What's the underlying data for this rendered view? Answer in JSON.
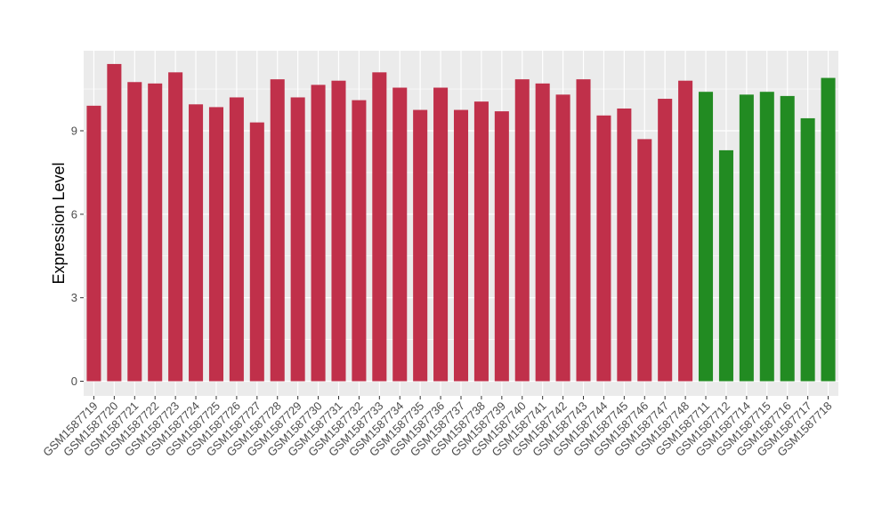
{
  "chart_data": {
    "type": "bar",
    "title": "",
    "xlabel": "",
    "ylabel": "Expression Level",
    "ylim": [
      0,
      11.9
    ],
    "yticks": [
      0,
      3,
      6,
      9
    ],
    "grid": true,
    "categories": [
      "GSM1587719",
      "GSM1587720",
      "GSM1587721",
      "GSM1587722",
      "GSM1587723",
      "GSM1587724",
      "GSM1587725",
      "GSM1587726",
      "GSM1587727",
      "GSM1587728",
      "GSM1587729",
      "GSM1587730",
      "GSM1587731",
      "GSM1587732",
      "GSM1587733",
      "GSM1587734",
      "GSM1587735",
      "GSM1587736",
      "GSM1587737",
      "GSM1587738",
      "GSM1587739",
      "GSM1587740",
      "GSM1587741",
      "GSM1587742",
      "GSM1587743",
      "GSM1587744",
      "GSM1587745",
      "GSM1587746",
      "GSM1587747",
      "GSM1587748",
      "GSM1587711",
      "GSM1587712",
      "GSM1587714",
      "GSM1587715",
      "GSM1587716",
      "GSM1587717",
      "GSM1587718"
    ],
    "values": [
      9.9,
      11.4,
      10.75,
      10.7,
      11.1,
      9.95,
      9.85,
      10.2,
      9.3,
      10.85,
      10.2,
      10.65,
      10.8,
      10.1,
      11.1,
      10.55,
      9.75,
      10.55,
      9.75,
      10.05,
      9.7,
      10.85,
      10.7,
      10.3,
      10.85,
      9.55,
      9.8,
      8.7,
      10.15,
      10.8,
      10.4,
      8.3,
      10.3,
      10.4,
      10.25,
      9.45,
      10.9
    ],
    "group_colors": [
      "#c0304a",
      "#c0304a",
      "#c0304a",
      "#c0304a",
      "#c0304a",
      "#c0304a",
      "#c0304a",
      "#c0304a",
      "#c0304a",
      "#c0304a",
      "#c0304a",
      "#c0304a",
      "#c0304a",
      "#c0304a",
      "#c0304a",
      "#c0304a",
      "#c0304a",
      "#c0304a",
      "#c0304a",
      "#c0304a",
      "#c0304a",
      "#c0304a",
      "#c0304a",
      "#c0304a",
      "#c0304a",
      "#c0304a",
      "#c0304a",
      "#c0304a",
      "#c0304a",
      "#c0304a",
      "#228b22",
      "#228b22",
      "#228b22",
      "#228b22",
      "#228b22",
      "#228b22",
      "#228b22"
    ],
    "panel_background": "#ebebeb",
    "gridline_color": "#ffffff"
  }
}
